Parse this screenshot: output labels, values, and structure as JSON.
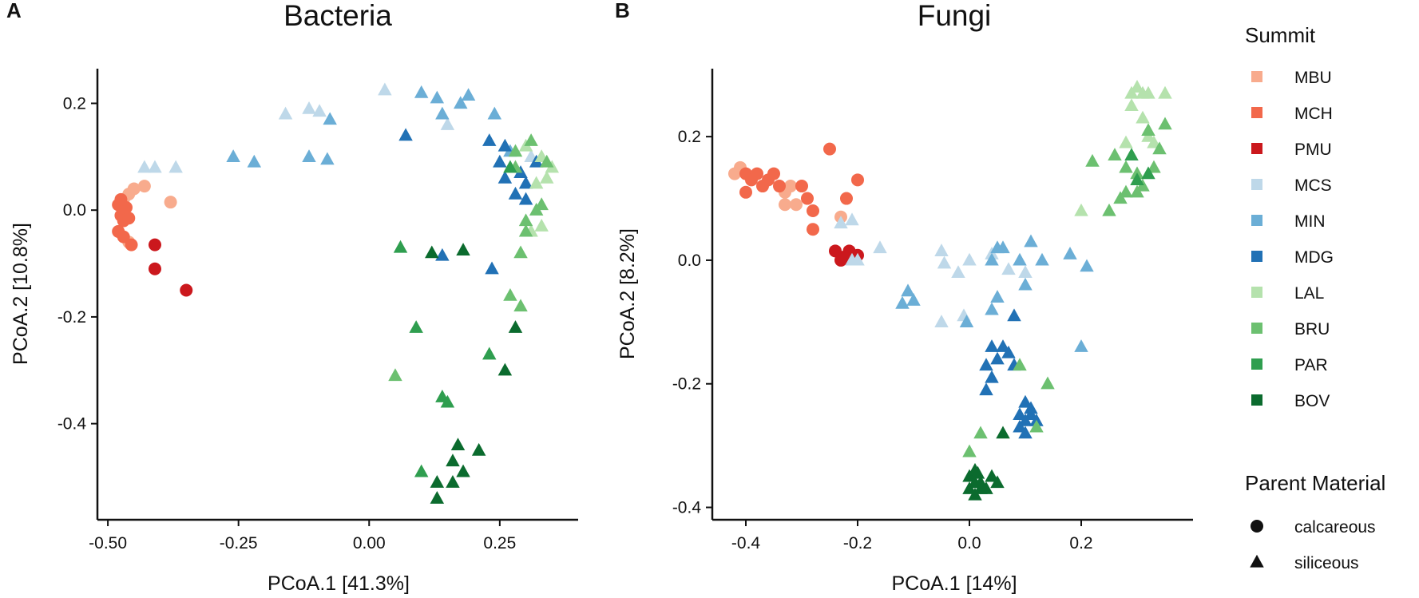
{
  "chart_data": [
    {
      "type": "scatter",
      "panel_label": "A",
      "title": "Bacteria",
      "xlabel": "PCoA.1 [41.3%]",
      "ylabel": "PCoA.2 [10.8%]",
      "xlim": [
        -0.52,
        0.4
      ],
      "ylim": [
        -0.58,
        0.265
      ],
      "xticks": [
        -0.5,
        -0.25,
        0.0,
        0.25
      ],
      "xtick_labels": [
        "-0.50",
        "-0.25",
        "0.00",
        "0.25"
      ],
      "yticks": [
        0.2,
        0.0,
        -0.2,
        -0.4
      ],
      "ytick_labels": [
        "0.2",
        "0.0",
        "-0.2",
        "-0.4"
      ],
      "series": [
        {
          "name": "MBU",
          "marker": "circle",
          "points": [
            [
              -0.47,
              0.02
            ],
            [
              -0.45,
              0.04
            ],
            [
              -0.43,
              0.045
            ],
            [
              -0.38,
              0.015
            ],
            [
              -0.46,
              -0.06
            ],
            [
              -0.47,
              0.0
            ],
            [
              -0.46,
              0.03
            ]
          ]
        },
        {
          "name": "MCH",
          "marker": "circle",
          "points": [
            [
              -0.48,
              0.01
            ],
            [
              -0.475,
              -0.01
            ],
            [
              -0.47,
              -0.02
            ],
            [
              -0.48,
              -0.04
            ],
            [
              -0.465,
              0.005
            ],
            [
              -0.46,
              -0.015
            ],
            [
              -0.455,
              -0.065
            ],
            [
              -0.475,
              0.02
            ],
            [
              -0.47,
              -0.05
            ]
          ]
        },
        {
          "name": "PMU",
          "marker": "circle",
          "points": [
            [
              -0.41,
              -0.065
            ],
            [
              -0.41,
              -0.11
            ],
            [
              -0.35,
              -0.15
            ]
          ]
        },
        {
          "name": "MCS",
          "marker": "triangle",
          "points": [
            [
              -0.43,
              0.08
            ],
            [
              -0.41,
              0.08
            ],
            [
              -0.37,
              0.08
            ],
            [
              -0.16,
              0.18
            ],
            [
              -0.115,
              0.19
            ],
            [
              -0.095,
              0.185
            ],
            [
              0.03,
              0.225
            ],
            [
              0.15,
              0.16
            ],
            [
              0.29,
              0.07
            ],
            [
              0.31,
              0.1
            ]
          ]
        },
        {
          "name": "MIN",
          "marker": "triangle",
          "points": [
            [
              -0.26,
              0.1
            ],
            [
              -0.22,
              0.09
            ],
            [
              -0.115,
              0.1
            ],
            [
              -0.08,
              0.095
            ],
            [
              -0.075,
              0.17
            ],
            [
              0.1,
              0.22
            ],
            [
              0.13,
              0.21
            ],
            [
              0.175,
              0.2
            ],
            [
              0.19,
              0.215
            ],
            [
              0.24,
              0.18
            ],
            [
              0.14,
              0.18
            ],
            [
              0.27,
              0.11
            ]
          ]
        },
        {
          "name": "MDG",
          "marker": "triangle",
          "points": [
            [
              0.07,
              0.14
            ],
            [
              0.23,
              0.13
            ],
            [
              0.26,
              0.12
            ],
            [
              0.25,
              0.09
            ],
            [
              0.26,
              0.06
            ],
            [
              0.29,
              0.07
            ],
            [
              0.28,
              0.03
            ],
            [
              0.3,
              0.05
            ],
            [
              0.32,
              0.09
            ],
            [
              0.3,
              0.02
            ],
            [
              0.14,
              -0.085
            ],
            [
              0.235,
              -0.11
            ]
          ]
        },
        {
          "name": "LAL",
          "marker": "triangle",
          "points": [
            [
              0.3,
              0.12
            ],
            [
              0.33,
              0.1
            ],
            [
              0.35,
              0.08
            ],
            [
              0.32,
              0.05
            ],
            [
              0.34,
              0.06
            ],
            [
              0.31,
              -0.04
            ],
            [
              0.33,
              -0.03
            ]
          ]
        },
        {
          "name": "BRU",
          "marker": "triangle",
          "points": [
            [
              0.28,
              0.11
            ],
            [
              0.31,
              0.13
            ],
            [
              0.34,
              0.09
            ],
            [
              0.32,
              0.0
            ],
            [
              0.3,
              -0.02
            ],
            [
              0.33,
              0.01
            ],
            [
              0.28,
              0.08
            ],
            [
              0.3,
              -0.04
            ],
            [
              0.29,
              -0.08
            ],
            [
              0.05,
              -0.31
            ],
            [
              0.29,
              -0.18
            ],
            [
              0.27,
              -0.16
            ]
          ]
        },
        {
          "name": "PAR",
          "marker": "triangle",
          "points": [
            [
              0.06,
              -0.07
            ],
            [
              0.09,
              -0.22
            ],
            [
              0.14,
              -0.35
            ],
            [
              0.15,
              -0.36
            ],
            [
              0.23,
              -0.27
            ],
            [
              0.1,
              -0.49
            ],
            [
              0.27,
              0.08
            ]
          ]
        },
        {
          "name": "BOV",
          "marker": "triangle",
          "points": [
            [
              0.12,
              -0.08
            ],
            [
              0.18,
              -0.075
            ],
            [
              0.28,
              -0.22
            ],
            [
              0.26,
              -0.3
            ],
            [
              0.17,
              -0.44
            ],
            [
              0.21,
              -0.45
            ],
            [
              0.16,
              -0.47
            ],
            [
              0.18,
              -0.49
            ],
            [
              0.13,
              -0.51
            ],
            [
              0.16,
              -0.51
            ],
            [
              0.13,
              -0.54
            ]
          ]
        }
      ]
    },
    {
      "type": "scatter",
      "panel_label": "B",
      "title": "Fungi",
      "xlabel": "PCoA.1 [14%]",
      "ylabel": "PCoA.2 [8.2%]",
      "xlim": [
        -0.46,
        0.4
      ],
      "ylim": [
        -0.42,
        0.31
      ],
      "xticks": [
        -0.4,
        -0.2,
        0.0,
        0.2
      ],
      "xtick_labels": [
        "-0.4",
        "-0.2",
        "0.0",
        "0.2"
      ],
      "yticks": [
        0.2,
        0.0,
        -0.2,
        -0.4
      ],
      "ytick_labels": [
        "0.2",
        "0.0",
        "-0.2",
        "-0.4"
      ],
      "series": [
        {
          "name": "MBU",
          "marker": "circle",
          "points": [
            [
              -0.42,
              0.14
            ],
            [
              -0.41,
              0.15
            ],
            [
              -0.33,
              0.11
            ],
            [
              -0.32,
              0.12
            ],
            [
              -0.33,
              0.09
            ],
            [
              -0.31,
              0.09
            ],
            [
              -0.23,
              0.07
            ]
          ]
        },
        {
          "name": "MCH",
          "marker": "circle",
          "points": [
            [
              -0.4,
              0.14
            ],
            [
              -0.39,
              0.13
            ],
            [
              -0.38,
              0.14
            ],
            [
              -0.37,
              0.12
            ],
            [
              -0.36,
              0.13
            ],
            [
              -0.35,
              0.14
            ],
            [
              -0.34,
              0.12
            ],
            [
              -0.3,
              0.12
            ],
            [
              -0.29,
              0.1
            ],
            [
              -0.25,
              0.18
            ],
            [
              -0.22,
              0.1
            ],
            [
              -0.2,
              0.13
            ],
            [
              -0.28,
              0.08
            ],
            [
              -0.28,
              0.05
            ],
            [
              -0.4,
              0.11
            ]
          ]
        },
        {
          "name": "PMU",
          "marker": "circle",
          "points": [
            [
              -0.24,
              0.015
            ],
            [
              -0.225,
              0.005
            ],
            [
              -0.215,
              0.015
            ],
            [
              -0.2,
              0.008
            ],
            [
              -0.23,
              0.0
            ]
          ]
        },
        {
          "name": "MCS",
          "marker": "triangle",
          "points": [
            [
              -0.21,
              0.065
            ],
            [
              -0.23,
              0.06
            ],
            [
              -0.16,
              0.02
            ],
            [
              -0.05,
              0.015
            ],
            [
              -0.045,
              -0.005
            ],
            [
              -0.02,
              -0.02
            ],
            [
              0.0,
              0.0
            ],
            [
              0.04,
              0.01
            ],
            [
              0.07,
              -0.015
            ],
            [
              -0.05,
              -0.1
            ],
            [
              -0.01,
              -0.09
            ],
            [
              0.1,
              -0.02
            ],
            [
              -0.2,
              0.0
            ],
            [
              -0.21,
              0.0
            ]
          ]
        },
        {
          "name": "MIN",
          "marker": "triangle",
          "points": [
            [
              -0.12,
              -0.07
            ],
            [
              -0.11,
              -0.05
            ],
            [
              -0.1,
              -0.065
            ],
            [
              -0.005,
              -0.1
            ],
            [
              0.05,
              -0.06
            ],
            [
              0.04,
              -0.08
            ],
            [
              0.05,
              0.02
            ],
            [
              0.06,
              0.02
            ],
            [
              0.09,
              0.0
            ],
            [
              0.11,
              0.03
            ],
            [
              0.1,
              -0.04
            ],
            [
              0.13,
              0.0
            ],
            [
              0.18,
              0.01
            ],
            [
              0.21,
              -0.01
            ],
            [
              0.2,
              -0.14
            ],
            [
              0.04,
              0.0
            ]
          ]
        },
        {
          "name": "MDG",
          "marker": "triangle",
          "points": [
            [
              0.08,
              -0.09
            ],
            [
              0.04,
              -0.14
            ],
            [
              0.05,
              -0.16
            ],
            [
              0.06,
              -0.14
            ],
            [
              0.07,
              -0.15
            ],
            [
              0.08,
              -0.17
            ],
            [
              0.03,
              -0.17
            ],
            [
              0.1,
              -0.23
            ],
            [
              0.11,
              -0.24
            ],
            [
              0.09,
              -0.25
            ],
            [
              0.1,
              -0.26
            ],
            [
              0.11,
              -0.25
            ],
            [
              0.12,
              -0.26
            ],
            [
              0.09,
              -0.27
            ],
            [
              0.1,
              -0.28
            ],
            [
              0.04,
              -0.19
            ],
            [
              0.03,
              -0.21
            ]
          ]
        },
        {
          "name": "LAL",
          "marker": "triangle",
          "points": [
            [
              0.29,
              0.27
            ],
            [
              0.3,
              0.28
            ],
            [
              0.31,
              0.27
            ],
            [
              0.32,
              0.27
            ],
            [
              0.35,
              0.27
            ],
            [
              0.29,
              0.25
            ],
            [
              0.31,
              0.23
            ],
            [
              0.32,
              0.2
            ],
            [
              0.2,
              0.08
            ],
            [
              0.33,
              0.19
            ],
            [
              0.28,
              0.19
            ]
          ]
        },
        {
          "name": "BRU",
          "marker": "triangle",
          "points": [
            [
              0.22,
              0.16
            ],
            [
              0.26,
              0.17
            ],
            [
              0.28,
              0.15
            ],
            [
              0.3,
              0.14
            ],
            [
              0.34,
              0.18
            ],
            [
              0.35,
              0.22
            ],
            [
              0.32,
              0.21
            ],
            [
              0.33,
              0.15
            ],
            [
              0.31,
              0.12
            ],
            [
              0.3,
              0.11
            ],
            [
              0.28,
              0.11
            ],
            [
              0.25,
              0.08
            ],
            [
              0.27,
              0.1
            ],
            [
              0.14,
              -0.2
            ],
            [
              0.12,
              -0.27
            ],
            [
              0.09,
              -0.17
            ],
            [
              0.0,
              -0.31
            ],
            [
              0.02,
              -0.28
            ]
          ]
        },
        {
          "name": "PAR",
          "marker": "triangle",
          "points": [
            [
              0.3,
              0.13
            ],
            [
              0.32,
              0.14
            ],
            [
              0.29,
              0.17
            ]
          ]
        },
        {
          "name": "BOV",
          "marker": "triangle",
          "points": [
            [
              0.0,
              -0.35
            ],
            [
              0.01,
              -0.34
            ],
            [
              0.01,
              -0.36
            ],
            [
              0.02,
              -0.37
            ],
            [
              0.0,
              -0.37
            ],
            [
              0.01,
              -0.38
            ],
            [
              0.02,
              -0.36
            ],
            [
              0.04,
              -0.35
            ],
            [
              0.05,
              -0.36
            ],
            [
              0.06,
              -0.28
            ],
            [
              0.03,
              -0.37
            ],
            [
              0.015,
              -0.345
            ]
          ]
        }
      ]
    }
  ],
  "legend": {
    "summit_title": "Summit",
    "summit_items": [
      {
        "name": "MBU",
        "color": "#f8ab8d"
      },
      {
        "name": "MCH",
        "color": "#f2684b"
      },
      {
        "name": "PMU",
        "color": "#cb181d"
      },
      {
        "name": "MCS",
        "color": "#bed8e9"
      },
      {
        "name": "MIN",
        "color": "#6baed6"
      },
      {
        "name": "MDG",
        "color": "#2171b5"
      },
      {
        "name": "LAL",
        "color": "#b5e2ad"
      },
      {
        "name": "BRU",
        "color": "#6cc070"
      },
      {
        "name": "PAR",
        "color": "#2f9e4f"
      },
      {
        "name": "BOV",
        "color": "#0b6b2e"
      }
    ],
    "material_title": "Parent Material",
    "material_items": [
      {
        "name": "calcareous",
        "marker": "circle"
      },
      {
        "name": "siliceous",
        "marker": "triangle"
      }
    ]
  }
}
